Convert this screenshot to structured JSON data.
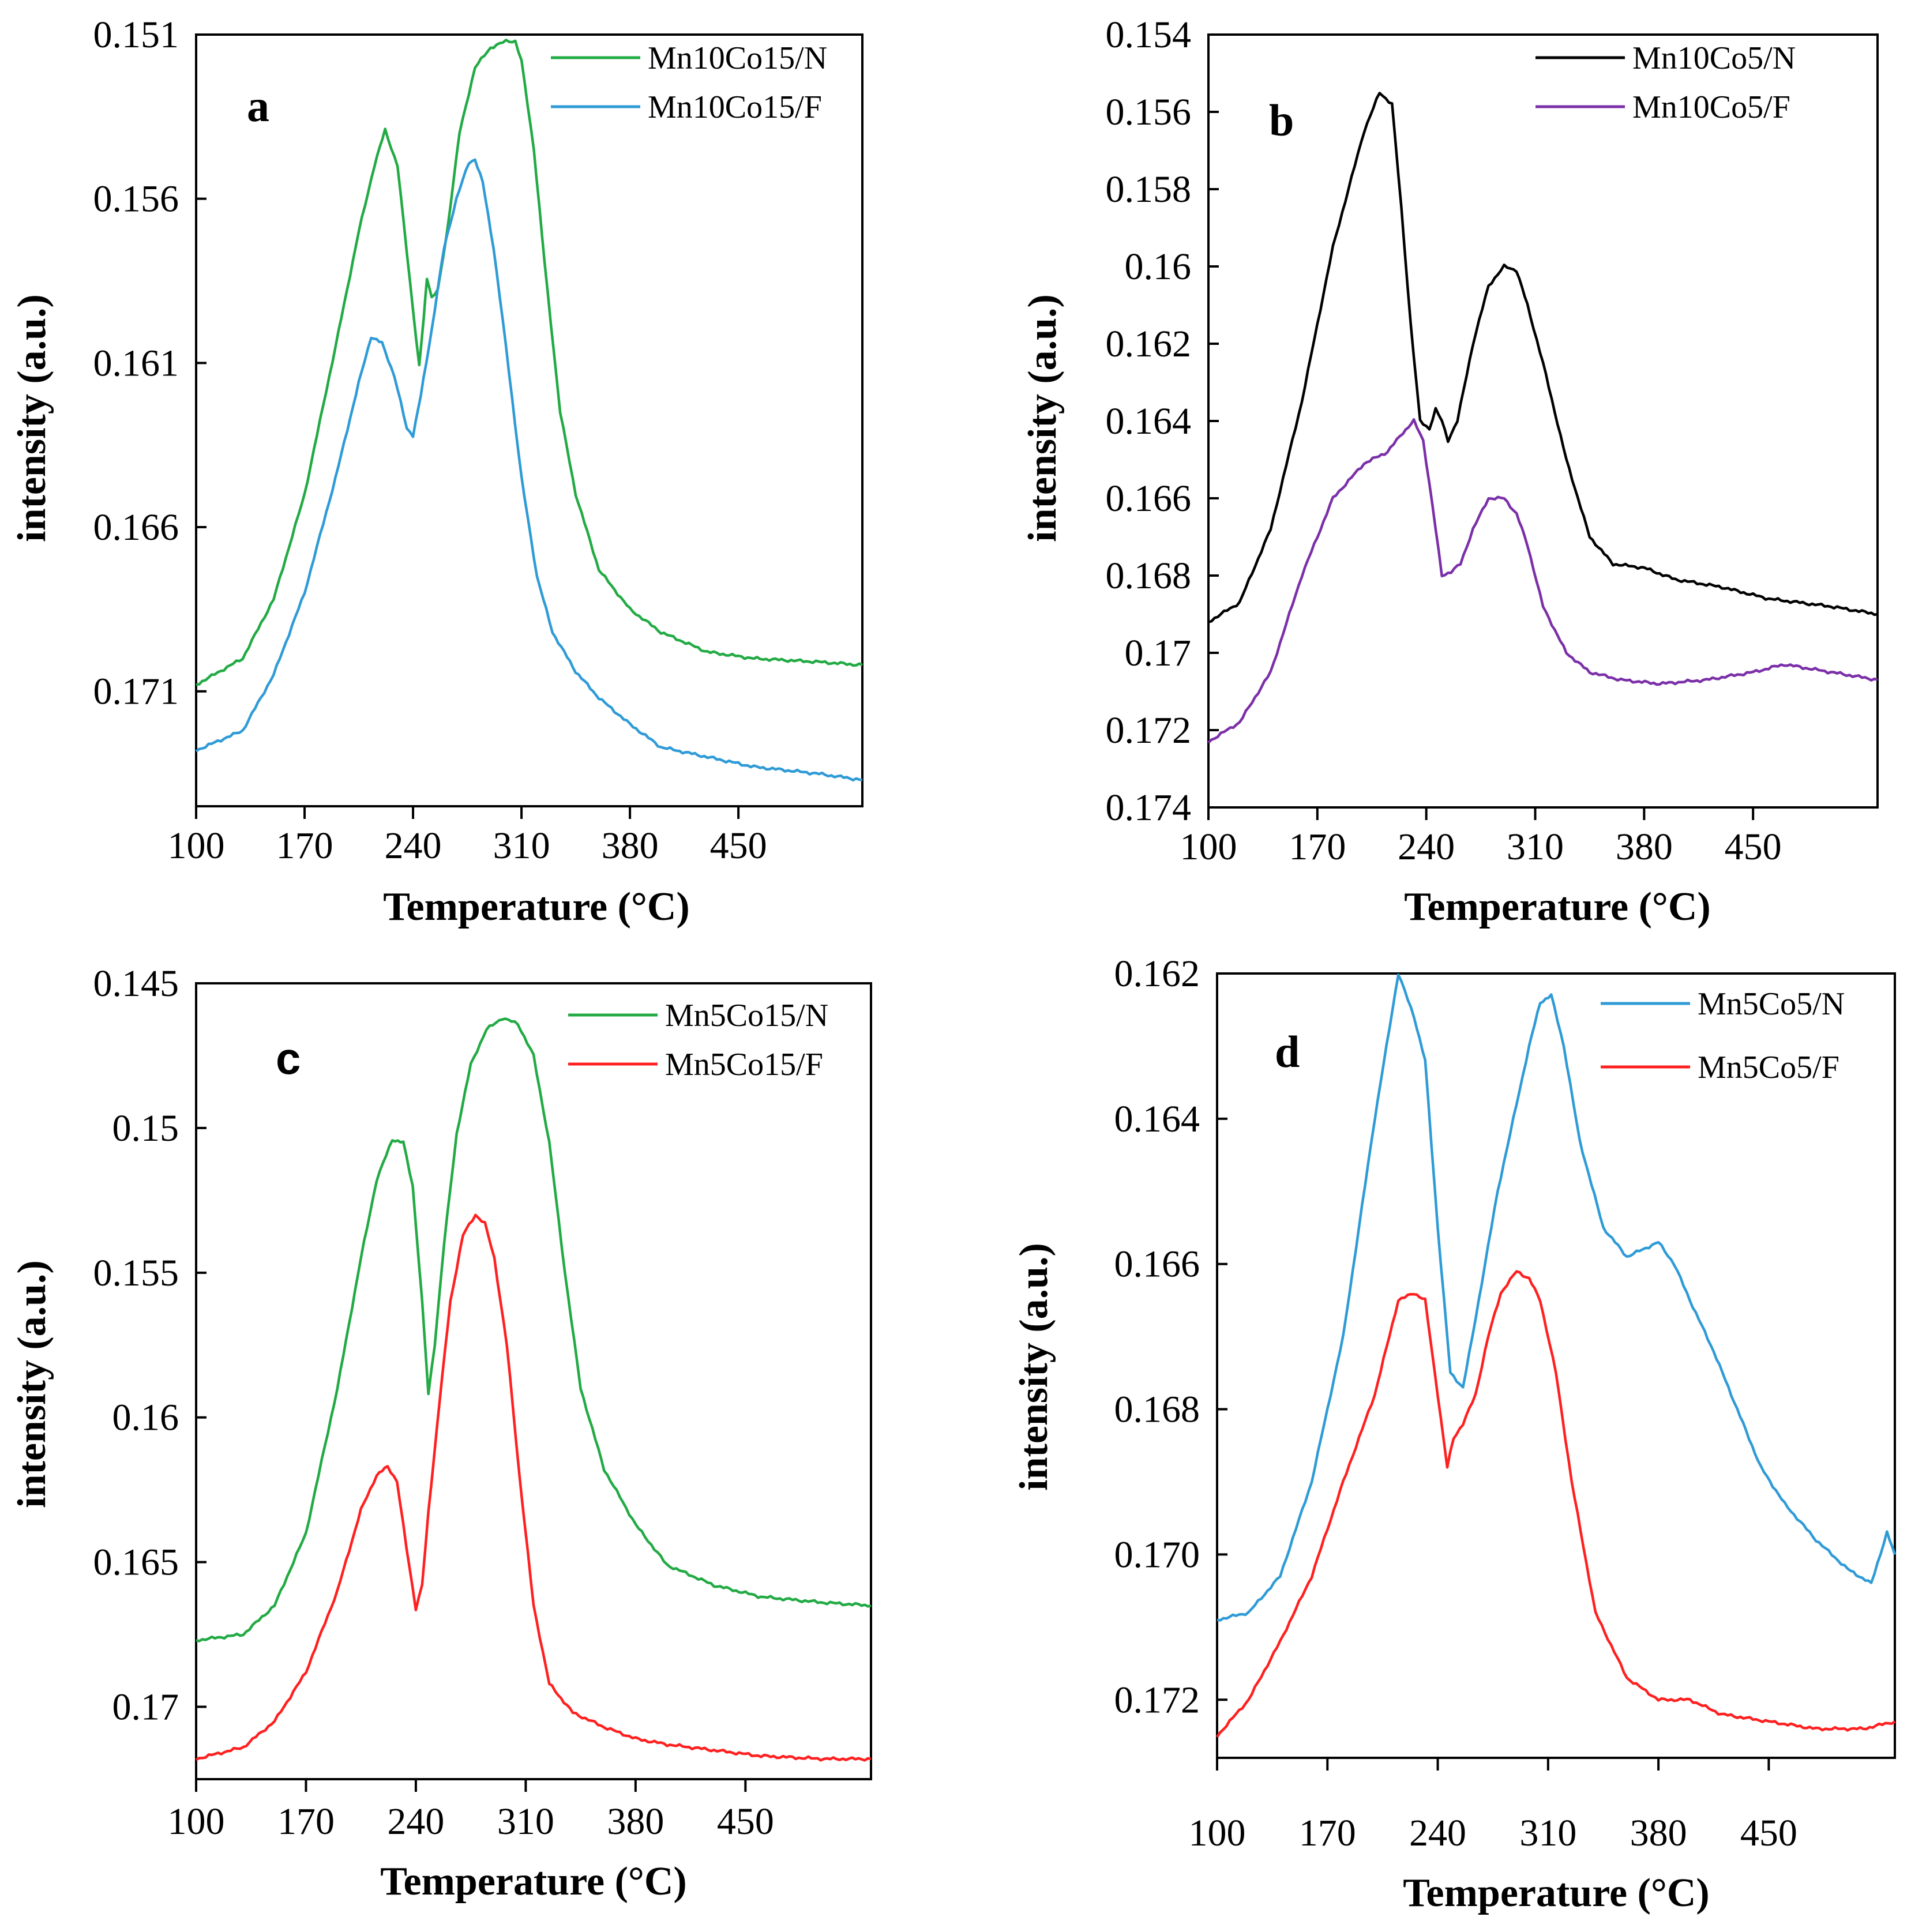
{
  "chart_data": [
    {
      "type": "line",
      "panel_label": "a",
      "xlabel": "Temperature  (°C)",
      "ylabel": "intensity (a.u.)",
      "xlim": [
        100,
        530
      ],
      "ylim": [
        0.151,
        0.1745
      ],
      "y_inverted": true,
      "x_ticks": [
        100,
        170,
        240,
        310,
        380,
        450
      ],
      "x_tick_labels": [
        "100",
        "170",
        "240",
        "310",
        "380",
        "450"
      ],
      "y_ticks": [
        0.151,
        0.156,
        0.161,
        0.166,
        0.171
      ],
      "y_tick_labels": [
        "0.151",
        "0.156",
        "0.161",
        "0.166",
        "0.171"
      ],
      "legend_position": "top-right",
      "series": [
        {
          "name": "Mn10Co15/N",
          "color": "#22aa44",
          "x": [
            100,
            130,
            150,
            170,
            190,
            205,
            215,
            222,
            230,
            238,
            244,
            247,
            249,
            252,
            256,
            262,
            270,
            280,
            290,
            300,
            306,
            310,
            318,
            325,
            335,
            345,
            360,
            380,
            400,
            430,
            460,
            500,
            530
          ],
          "y": [
            0.1708,
            0.17,
            0.1682,
            0.165,
            0.1605,
            0.157,
            0.155,
            0.1539,
            0.155,
            0.1585,
            0.1611,
            0.1596,
            0.1584,
            0.159,
            0.1588,
            0.157,
            0.154,
            0.152,
            0.1514,
            0.1512,
            0.1512,
            0.1518,
            0.1545,
            0.158,
            0.1625,
            0.165,
            0.1673,
            0.1685,
            0.1692,
            0.1698,
            0.17,
            0.1701,
            0.1702
          ]
        },
        {
          "name": "Mn10Co15/F",
          "color": "#2f9bd6",
          "x": [
            100,
            130,
            150,
            170,
            190,
            205,
            213,
            220,
            228,
            236,
            240,
            245,
            252,
            260,
            268,
            276,
            280,
            285,
            292,
            300,
            310,
            320,
            330,
            345,
            360,
            380,
            400,
            430,
            460,
            500,
            530
          ],
          "y": [
            0.1728,
            0.1722,
            0.1705,
            0.168,
            0.1645,
            0.1616,
            0.1602,
            0.1604,
            0.1614,
            0.163,
            0.1632,
            0.162,
            0.16,
            0.1575,
            0.156,
            0.1549,
            0.1548,
            0.1555,
            0.1575,
            0.1605,
            0.1645,
            0.1675,
            0.1692,
            0.1704,
            0.1712,
            0.172,
            0.1727,
            0.173,
            0.1733,
            0.1735,
            0.1737
          ]
        }
      ]
    },
    {
      "type": "line",
      "panel_label": "b",
      "xlabel": "Temperature (°C)",
      "ylabel": "intensity (a.u.)",
      "xlim": [
        100,
        530
      ],
      "ylim": [
        0.154,
        0.174
      ],
      "y_inverted": true,
      "x_ticks": [
        100,
        170,
        240,
        310,
        380,
        450
      ],
      "x_tick_labels": [
        "100",
        "170",
        "240",
        "310",
        "380",
        "450"
      ],
      "y_ticks": [
        0.154,
        0.156,
        0.158,
        0.16,
        0.162,
        0.164,
        0.166,
        0.168,
        0.17,
        0.172,
        0.174
      ],
      "y_tick_labels": [
        "0.154",
        "0.156",
        "0.158",
        "0.16",
        "0.162",
        "0.164",
        "0.166",
        "0.168",
        "0.17",
        "0.172",
        "0.174"
      ],
      "legend_position": "top-right",
      "series": [
        {
          "name": "Mn10Co5/N",
          "color": "#000000",
          "x": [
            100,
            120,
            140,
            160,
            180,
            200,
            210,
            218,
            224,
            230,
            236,
            242,
            246,
            250,
            254,
            260,
            270,
            280,
            290,
            298,
            305,
            315,
            330,
            345,
            360,
            380,
            400,
            430,
            460,
            500,
            530
          ],
          "y": [
            0.1692,
            0.1687,
            0.1668,
            0.1635,
            0.1595,
            0.1565,
            0.1555,
            0.1558,
            0.1585,
            0.1615,
            0.164,
            0.1642,
            0.1637,
            0.164,
            0.1645,
            0.164,
            0.162,
            0.1605,
            0.16,
            0.1601,
            0.161,
            0.1625,
            0.165,
            0.167,
            0.1677,
            0.1678,
            0.1681,
            0.1683,
            0.1686,
            0.1688,
            0.169
          ]
        },
        {
          "name": "Mn10Co5/F",
          "color": "#7b2fa8",
          "x": [
            100,
            120,
            140,
            160,
            180,
            200,
            215,
            225,
            232,
            238,
            244,
            250,
            256,
            262,
            270,
            280,
            290,
            298,
            305,
            315,
            330,
            345,
            365,
            390,
            420,
            450,
            470,
            500,
            530
          ],
          "y": [
            0.1723,
            0.1718,
            0.1705,
            0.168,
            0.166,
            0.1651,
            0.1648,
            0.1643,
            0.164,
            0.1645,
            0.1662,
            0.168,
            0.1679,
            0.1677,
            0.1668,
            0.166,
            0.166,
            0.1664,
            0.1672,
            0.1688,
            0.17,
            0.1705,
            0.1707,
            0.1708,
            0.1707,
            0.1705,
            0.1703,
            0.1705,
            0.1707
          ]
        }
      ]
    },
    {
      "type": "line",
      "panel_label": "c",
      "xlabel": "Temperature (°C)",
      "ylabel": "intensity (a.u.)",
      "xlim": [
        100,
        530
      ],
      "ylim": [
        0.145,
        0.1725
      ],
      "y_inverted": true,
      "x_ticks": [
        100,
        170,
        240,
        310,
        380,
        450
      ],
      "x_tick_labels": [
        "100",
        "170",
        "240",
        "310",
        "380",
        "450"
      ],
      "y_ticks": [
        0.145,
        0.15,
        0.155,
        0.16,
        0.165,
        0.17
      ],
      "y_tick_labels": [
        "0.145",
        "0.15",
        "0.155",
        "0.16",
        "0.165",
        "0.17"
      ],
      "legend_position": "top-right",
      "series": [
        {
          "name": "Mn5Co15/N",
          "color": "#22aa44",
          "x": [
            100,
            130,
            150,
            170,
            190,
            205,
            215,
            225,
            232,
            238,
            244,
            248,
            252,
            258,
            266,
            275,
            285,
            295,
            305,
            315,
            325,
            335,
            345,
            360,
            380,
            400,
            430,
            460,
            500,
            530
          ],
          "y": [
            0.1677,
            0.1675,
            0.1665,
            0.164,
            0.159,
            0.1545,
            0.1518,
            0.1504,
            0.1505,
            0.152,
            0.156,
            0.1592,
            0.1575,
            0.154,
            0.1502,
            0.1478,
            0.1466,
            0.1462,
            0.1464,
            0.1475,
            0.1505,
            0.155,
            0.159,
            0.1618,
            0.1637,
            0.1651,
            0.1658,
            0.1662,
            0.1664,
            0.1665
          ]
        },
        {
          "name": "Mn5Co15/F",
          "color": "#ff2020",
          "x": [
            100,
            130,
            150,
            170,
            190,
            205,
            215,
            222,
            228,
            234,
            240,
            244,
            248,
            255,
            262,
            270,
            278,
            284,
            290,
            298,
            306,
            315,
            325,
            340,
            360,
            380,
            400,
            430,
            460,
            500,
            530
          ],
          "y": [
            0.1718,
            0.1714,
            0.1705,
            0.1688,
            0.166,
            0.1632,
            0.162,
            0.1617,
            0.1622,
            0.1645,
            0.1666,
            0.1658,
            0.1633,
            0.1595,
            0.156,
            0.1537,
            0.153,
            0.1533,
            0.1545,
            0.1575,
            0.162,
            0.1665,
            0.1692,
            0.1702,
            0.1707,
            0.1711,
            0.1713,
            0.1715,
            0.1717,
            0.1718,
            0.1718
          ]
        }
      ]
    },
    {
      "type": "line",
      "panel_label": "d",
      "xlabel": "Temperature (°C)",
      "ylabel": "intensity (a.u.)",
      "xlim": [
        100,
        530
      ],
      "ylim": [
        0.162,
        0.1728
      ],
      "y_inverted": true,
      "x_ticks": [
        100,
        170,
        240,
        310,
        380,
        450
      ],
      "x_tick_labels": [
        "100",
        "170",
        "240",
        "310",
        "380",
        "450"
      ],
      "y_ticks": [
        0.162,
        0.164,
        0.166,
        0.168,
        0.17,
        0.172
      ],
      "y_tick_labels": [
        "0.162",
        "0.164",
        "0.166",
        "0.168",
        "0.170",
        "0.172"
      ],
      "legend_position": "top-right",
      "series": [
        {
          "name": "Mn5Co5/N",
          "color": "#2f9bd6",
          "x": [
            100,
            120,
            140,
            160,
            180,
            200,
            215,
            225,
            232,
            240,
            248,
            256,
            262,
            270,
            278,
            288,
            298,
            305,
            312,
            320,
            330,
            345,
            360,
            370,
            380,
            390,
            400,
            415,
            430,
            445,
            460,
            480,
            500,
            515,
            525,
            530
          ],
          "y": [
            0.1709,
            0.1708,
            0.1703,
            0.169,
            0.167,
            0.164,
            0.162,
            0.1626,
            0.1632,
            0.1655,
            0.1675,
            0.1677,
            0.167,
            0.166,
            0.165,
            0.164,
            0.163,
            0.1624,
            0.1623,
            0.163,
            0.1643,
            0.1655,
            0.1659,
            0.1658,
            0.1657,
            0.166,
            0.1665,
            0.1672,
            0.168,
            0.1688,
            0.1693,
            0.1698,
            0.1702,
            0.1704,
            0.1697,
            0.17
          ]
        },
        {
          "name": "Mn5Co5/F",
          "color": "#ff2020",
          "x": [
            100,
            120,
            140,
            160,
            180,
            200,
            215,
            225,
            232,
            240,
            246,
            250,
            256,
            264,
            272,
            280,
            290,
            298,
            305,
            315,
            325,
            340,
            360,
            380,
            400,
            420,
            450,
            480,
            510,
            530
          ],
          "y": [
            0.1725,
            0.172,
            0.1712,
            0.1703,
            0.169,
            0.1678,
            0.1665,
            0.1664,
            0.1665,
            0.1678,
            0.1688,
            0.1684,
            0.1682,
            0.1678,
            0.167,
            0.1664,
            0.1661,
            0.1662,
            0.1665,
            0.1675,
            0.169,
            0.1708,
            0.1717,
            0.172,
            0.172,
            0.1722,
            0.1723,
            0.1724,
            0.1724,
            0.1723
          ]
        }
      ]
    }
  ]
}
